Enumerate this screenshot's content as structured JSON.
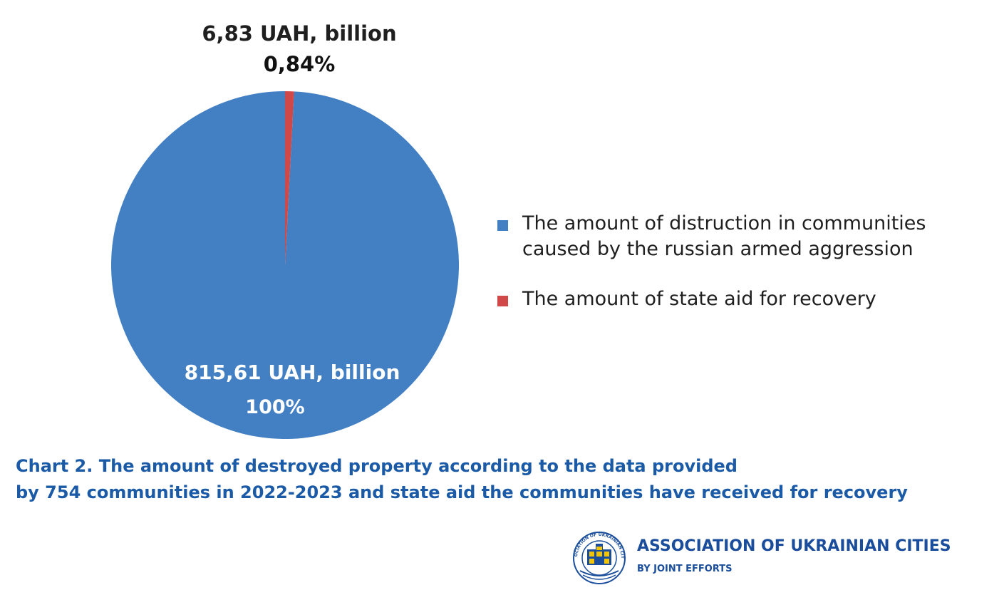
{
  "chart_data": {
    "type": "pie",
    "title": "",
    "slices": [
      {
        "label": "The amount of distruction in communities caused by the russian armed aggression",
        "value": 815.61,
        "percent_label": "100%",
        "value_label": "815,61 UAH, billion",
        "color": "#4380C3"
      },
      {
        "label": "The amount of state aid for recovery",
        "value": 6.83,
        "percent_label": "0,84%",
        "value_label": "6,83 UAH, billion",
        "color": "#D04848"
      }
    ],
    "legend_position": "right"
  },
  "legend": {
    "items": [
      {
        "text": "The amount of distruction in communities caused by the russian armed aggression",
        "color": "#4380C3"
      },
      {
        "text": "The amount of state aid for recovery",
        "color": "#D04848"
      }
    ]
  },
  "caption": {
    "line1": "Chart 2. The amount of destroyed property according to the data provided",
    "line2": "by 754 communities in 2022-2023 and state aid the communities have received for recovery"
  },
  "logo": {
    "title": "ASSOCIATION OF UKRAINIAN CITIES",
    "subtitle": "BY JOINT EFFORTS",
    "seal_text": "ASSOCIATION OF UKRAINIAN CITIES",
    "color": "#1A4E9C"
  }
}
